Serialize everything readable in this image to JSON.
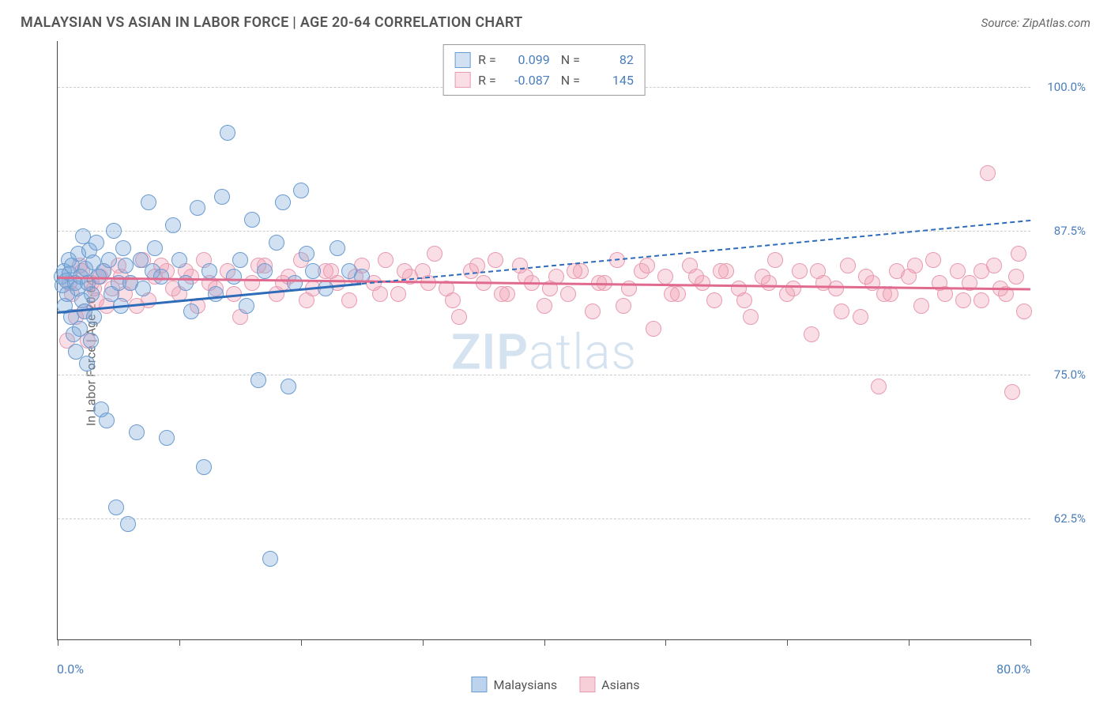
{
  "header": {
    "title": "MALAYSIAN VS ASIAN IN LABOR FORCE | AGE 20-64 CORRELATION CHART",
    "source": "Source: ZipAtlas.com"
  },
  "chart": {
    "type": "scatter",
    "ylabel": "In Labor Force | Age 20-64",
    "xlim": [
      0,
      80
    ],
    "ylim": [
      52,
      104
    ],
    "x_ticks": [
      0,
      10,
      20,
      30,
      40,
      50,
      60,
      70,
      80
    ],
    "x_tick_labels": {
      "left": "0.0%",
      "right": "80.0%"
    },
    "y_gridlines": [
      62.5,
      75.0,
      87.5,
      100.0
    ],
    "y_tick_labels": [
      "62.5%",
      "75.0%",
      "87.5%",
      "100.0%"
    ],
    "gridline_color": "#cccccc",
    "axis_color": "#444444",
    "background_color": "#ffffff",
    "watermark": {
      "text_bold": "ZIP",
      "text_light": "atlas",
      "color": "#d5e3f0"
    },
    "marker_radius": 10,
    "marker_stroke_width": 1.2,
    "series": [
      {
        "name": "Malaysians",
        "fill_color": "rgba(122,168,219,0.35)",
        "stroke_color": "#6a9bd1",
        "trend_color": "#2e6bb8",
        "R": "0.099",
        "N": "82",
        "trend": {
          "x1": 0,
          "y1": 80.5,
          "x2": 25,
          "y2": 83.0,
          "x2_ext": 80,
          "y2_ext": 88.5
        },
        "points": [
          [
            0.3,
            83.5
          ],
          [
            0.4,
            82.8
          ],
          [
            0.5,
            84.0
          ],
          [
            0.6,
            81.0
          ],
          [
            0.7,
            83.2
          ],
          [
            0.8,
            82.0
          ],
          [
            0.9,
            85.0
          ],
          [
            1.0,
            83.8
          ],
          [
            1.1,
            80.0
          ],
          [
            1.2,
            84.5
          ],
          [
            1.3,
            78.5
          ],
          [
            1.4,
            83.0
          ],
          [
            1.5,
            77.0
          ],
          [
            1.6,
            82.5
          ],
          [
            1.7,
            85.5
          ],
          [
            1.8,
            79.0
          ],
          [
            1.9,
            83.5
          ],
          [
            2.0,
            81.5
          ],
          [
            2.1,
            87.0
          ],
          [
            2.2,
            80.5
          ],
          [
            2.3,
            84.2
          ],
          [
            2.4,
            76.0
          ],
          [
            2.5,
            83.0
          ],
          [
            2.6,
            85.8
          ],
          [
            2.7,
            78.0
          ],
          [
            2.8,
            82.0
          ],
          [
            2.9,
            84.8
          ],
          [
            3.0,
            80.0
          ],
          [
            3.2,
            86.5
          ],
          [
            3.4,
            83.5
          ],
          [
            3.6,
            72.0
          ],
          [
            3.8,
            84.0
          ],
          [
            4.0,
            71.0
          ],
          [
            4.2,
            85.0
          ],
          [
            4.4,
            82.0
          ],
          [
            4.6,
            87.5
          ],
          [
            4.8,
            63.5
          ],
          [
            5.0,
            83.0
          ],
          [
            5.2,
            81.0
          ],
          [
            5.4,
            86.0
          ],
          [
            5.6,
            84.5
          ],
          [
            5.8,
            62.0
          ],
          [
            6.0,
            83.0
          ],
          [
            6.5,
            70.0
          ],
          [
            6.8,
            85.0
          ],
          [
            7.0,
            82.5
          ],
          [
            7.5,
            90.0
          ],
          [
            7.8,
            84.0
          ],
          [
            8.0,
            86.0
          ],
          [
            8.5,
            83.5
          ],
          [
            9.0,
            69.5
          ],
          [
            9.5,
            88.0
          ],
          [
            10.0,
            85.0
          ],
          [
            10.5,
            83.0
          ],
          [
            11.0,
            80.5
          ],
          [
            11.5,
            89.5
          ],
          [
            12.0,
            67.0
          ],
          [
            12.5,
            84.0
          ],
          [
            13.0,
            82.0
          ],
          [
            13.5,
            90.5
          ],
          [
            14.0,
            96.0
          ],
          [
            14.5,
            83.5
          ],
          [
            15.0,
            85.0
          ],
          [
            15.5,
            81.0
          ],
          [
            16.0,
            88.5
          ],
          [
            16.5,
            74.5
          ],
          [
            17.0,
            84.0
          ],
          [
            17.5,
            59.0
          ],
          [
            18.0,
            86.5
          ],
          [
            18.5,
            90.0
          ],
          [
            19.0,
            74.0
          ],
          [
            19.5,
            83.0
          ],
          [
            20.0,
            91.0
          ],
          [
            20.5,
            85.5
          ],
          [
            21.0,
            84.0
          ],
          [
            22.0,
            82.5
          ],
          [
            23.0,
            86.0
          ],
          [
            24.0,
            84.0
          ],
          [
            25.0,
            83.5
          ]
        ]
      },
      {
        "name": "Asians",
        "fill_color": "rgba(240,160,180,0.35)",
        "stroke_color": "#e89ab0",
        "trend_color": "#e06b8f",
        "R": "-0.087",
        "N": "145",
        "trend": {
          "x1": 0,
          "y1": 83.5,
          "x2": 80,
          "y2": 82.5
        },
        "points": [
          [
            1.0,
            83.0
          ],
          [
            1.5,
            80.0
          ],
          [
            2.0,
            84.0
          ],
          [
            2.5,
            78.0
          ],
          [
            3.0,
            82.5
          ],
          [
            3.5,
            83.5
          ],
          [
            4.0,
            81.0
          ],
          [
            5.0,
            84.5
          ],
          [
            5.5,
            82.0
          ],
          [
            6.0,
            83.0
          ],
          [
            7.0,
            85.0
          ],
          [
            7.5,
            81.5
          ],
          [
            8.0,
            83.5
          ],
          [
            9.0,
            84.0
          ],
          [
            10.0,
            82.0
          ],
          [
            11.0,
            83.5
          ],
          [
            11.5,
            81.0
          ],
          [
            12.0,
            85.0
          ],
          [
            13.0,
            82.5
          ],
          [
            14.0,
            84.0
          ],
          [
            15.0,
            80.0
          ],
          [
            16.0,
            83.0
          ],
          [
            17.0,
            84.5
          ],
          [
            18.0,
            82.0
          ],
          [
            19.0,
            83.5
          ],
          [
            20.0,
            85.0
          ],
          [
            21.0,
            82.5
          ],
          [
            22.0,
            84.0
          ],
          [
            23.0,
            83.0
          ],
          [
            24.0,
            81.5
          ],
          [
            25.0,
            84.5
          ],
          [
            26.0,
            83.0
          ],
          [
            27.0,
            85.0
          ],
          [
            28.0,
            82.0
          ],
          [
            29.0,
            83.5
          ],
          [
            30.0,
            84.0
          ],
          [
            31.0,
            85.5
          ],
          [
            32.0,
            82.5
          ],
          [
            33.0,
            80.0
          ],
          [
            34.0,
            84.0
          ],
          [
            35.0,
            83.0
          ],
          [
            36.0,
            85.0
          ],
          [
            37.0,
            82.0
          ],
          [
            38.0,
            84.5
          ],
          [
            39.0,
            83.0
          ],
          [
            40.0,
            81.0
          ],
          [
            41.0,
            83.5
          ],
          [
            42.0,
            82.0
          ],
          [
            43.0,
            84.0
          ],
          [
            44.0,
            80.5
          ],
          [
            45.0,
            83.0
          ],
          [
            46.0,
            85.0
          ],
          [
            47.0,
            82.5
          ],
          [
            48.0,
            84.0
          ],
          [
            49.0,
            79.0
          ],
          [
            50.0,
            83.5
          ],
          [
            51.0,
            82.0
          ],
          [
            52.0,
            84.5
          ],
          [
            53.0,
            83.0
          ],
          [
            54.0,
            81.5
          ],
          [
            55.0,
            84.0
          ],
          [
            56.0,
            82.5
          ],
          [
            57.0,
            80.0
          ],
          [
            58.0,
            83.5
          ],
          [
            59.0,
            85.0
          ],
          [
            60.0,
            82.0
          ],
          [
            61.0,
            84.0
          ],
          [
            62.0,
            78.5
          ],
          [
            63.0,
            83.0
          ],
          [
            64.0,
            82.5
          ],
          [
            65.0,
            84.5
          ],
          [
            66.0,
            80.0
          ],
          [
            67.0,
            83.0
          ],
          [
            67.5,
            74.0
          ],
          [
            68.0,
            82.0
          ],
          [
            69.0,
            84.0
          ],
          [
            70.0,
            83.5
          ],
          [
            71.0,
            81.0
          ],
          [
            72.0,
            85.0
          ],
          [
            73.0,
            82.0
          ],
          [
            74.0,
            84.0
          ],
          [
            75.0,
            83.0
          ],
          [
            76.0,
            81.5
          ],
          [
            76.5,
            92.5
          ],
          [
            77.0,
            84.5
          ],
          [
            78.0,
            82.0
          ],
          [
            78.5,
            73.5
          ],
          [
            79.0,
            85.5
          ],
          [
            79.5,
            80.5
          ],
          [
            0.8,
            78.0
          ],
          [
            1.2,
            82.0
          ],
          [
            1.8,
            84.5
          ],
          [
            2.2,
            80.5
          ],
          [
            2.8,
            83.0
          ],
          [
            3.2,
            81.5
          ],
          [
            3.8,
            84.0
          ],
          [
            4.5,
            82.5
          ],
          [
            5.2,
            83.5
          ],
          [
            6.5,
            81.0
          ],
          [
            8.5,
            84.5
          ],
          [
            9.5,
            82.5
          ],
          [
            10.5,
            84.0
          ],
          [
            12.5,
            83.0
          ],
          [
            14.5,
            82.0
          ],
          [
            16.5,
            84.5
          ],
          [
            18.5,
            83.0
          ],
          [
            20.5,
            81.5
          ],
          [
            22.5,
            84.0
          ],
          [
            24.5,
            83.5
          ],
          [
            26.5,
            82.0
          ],
          [
            28.5,
            84.0
          ],
          [
            30.5,
            83.0
          ],
          [
            32.5,
            81.5
          ],
          [
            34.5,
            84.5
          ],
          [
            36.5,
            82.0
          ],
          [
            38.5,
            83.5
          ],
          [
            40.5,
            82.5
          ],
          [
            42.5,
            84.0
          ],
          [
            44.5,
            83.0
          ],
          [
            46.5,
            81.0
          ],
          [
            48.5,
            84.5
          ],
          [
            50.5,
            82.0
          ],
          [
            52.5,
            83.5
          ],
          [
            54.5,
            84.0
          ],
          [
            56.5,
            81.5
          ],
          [
            58.5,
            83.0
          ],
          [
            60.5,
            82.5
          ],
          [
            62.5,
            84.0
          ],
          [
            64.5,
            80.5
          ],
          [
            66.5,
            83.5
          ],
          [
            68.5,
            82.0
          ],
          [
            70.5,
            84.5
          ],
          [
            72.5,
            83.0
          ],
          [
            74.5,
            81.5
          ],
          [
            76.0,
            84.0
          ],
          [
            77.5,
            82.5
          ],
          [
            78.8,
            83.5
          ]
        ]
      }
    ],
    "bottom_legend": [
      {
        "label": "Malaysians",
        "fill": "rgba(122,168,219,0.5)",
        "stroke": "#6a9bd1"
      },
      {
        "label": "Asians",
        "fill": "rgba(240,160,180,0.5)",
        "stroke": "#e89ab0"
      }
    ]
  }
}
